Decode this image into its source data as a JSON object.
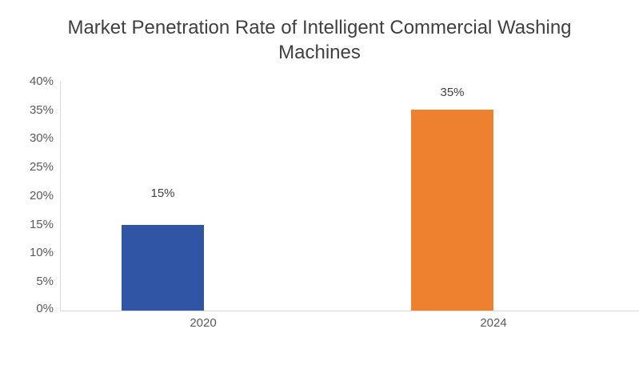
{
  "chart_data": {
    "type": "bar",
    "title": "Market Penetration Rate of Intelligent Commercial Washing Machines",
    "title_lines": [
      "Market Penetration Rate of Intelligent Commercial Washing",
      "Machines"
    ],
    "categories": [
      "2020",
      "2024"
    ],
    "values": [
      15,
      35
    ],
    "unit": "%",
    "data_labels": [
      "15%",
      "35%"
    ],
    "ytick_labels": [
      "40%",
      "35%",
      "30%",
      "25%",
      "20%",
      "15%",
      "10%",
      "5%",
      "0%"
    ],
    "ylim": [
      0,
      40
    ],
    "ytick_step": 5,
    "grid": false,
    "legend_position": "none",
    "xlabel": "",
    "ylabel": "",
    "series_colors": [
      "#2F55A4",
      "#EE8130"
    ],
    "colors": {
      "bar_2020": "#2F55A4",
      "bar_2024": "#EE8130",
      "title_text": "#404040",
      "tick_labels": "#595959",
      "data_labels": "#404040",
      "axis_line": "#D9D9D9",
      "background": "#FFFFFF"
    }
  }
}
